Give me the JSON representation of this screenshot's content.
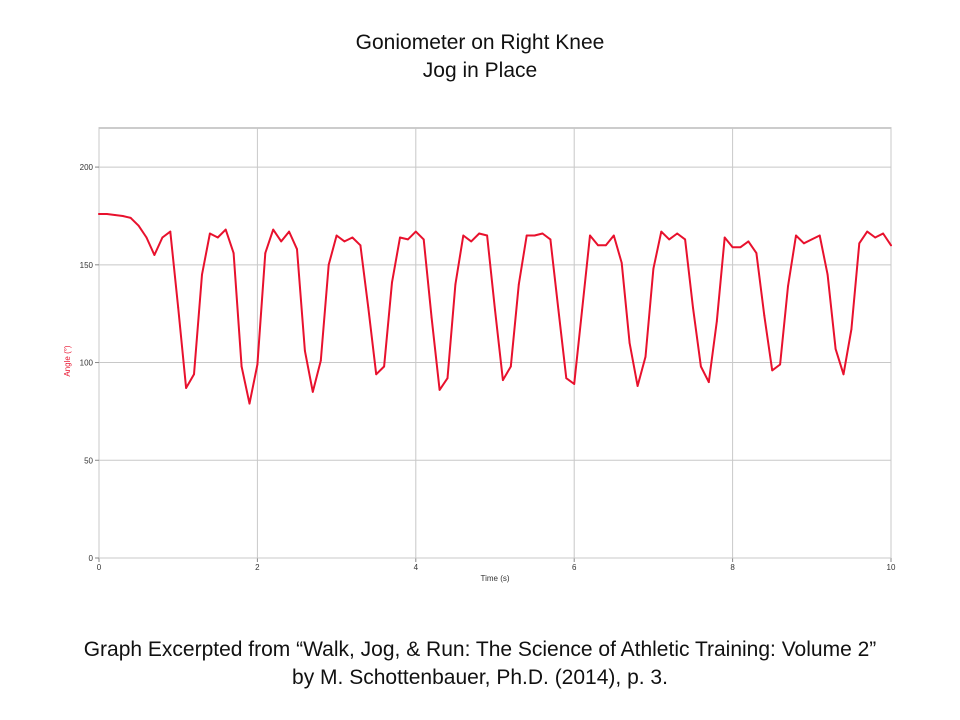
{
  "header": {
    "line1": "Goniometer on Right Knee",
    "line2": "Jog in Place"
  },
  "footer": {
    "line1": "Graph Excerpted from “Walk, Jog, & Run: The Science of Athletic Training: Volume 2”",
    "line2": "by M. Schottenbauer, Ph.D. (2014), p. 3."
  },
  "chart_data": {
    "type": "line",
    "title": "Goniometer on Right Knee",
    "subtitle": "Jog in Place",
    "xlabel": "Time (s)",
    "ylabel": "Angle (°)",
    "xlim": [
      0,
      10
    ],
    "ylim": [
      0,
      220
    ],
    "xticks": [
      0,
      2,
      4,
      6,
      8,
      10
    ],
    "yticks": [
      0,
      50,
      100,
      150,
      200
    ],
    "grid": true,
    "legend": "none",
    "colors": {
      "line": "#e8112d",
      "ylabel": "#e8112d",
      "grid": "#c8c8c8",
      "axis": "#888888"
    },
    "series": [
      {
        "x": [
          0,
          0.1,
          0.2,
          0.3,
          0.4,
          0.5,
          0.6,
          0.7,
          0.8,
          0.9,
          1.0,
          1.1,
          1.2,
          1.3,
          1.4,
          1.5,
          1.6,
          1.7,
          1.8,
          1.9,
          2.0,
          2.1,
          2.2,
          2.3,
          2.4,
          2.5,
          2.6,
          2.7,
          2.8,
          2.9,
          3.0,
          3.1,
          3.2,
          3.3,
          3.4,
          3.5,
          3.6,
          3.7,
          3.8,
          3.9,
          4.0,
          4.1,
          4.2,
          4.3,
          4.4,
          4.5,
          4.6,
          4.7,
          4.8,
          4.9,
          5.0,
          5.1,
          5.2,
          5.3,
          5.4,
          5.5,
          5.6,
          5.7,
          5.8,
          5.9,
          6.0,
          6.1,
          6.2,
          6.3,
          6.4,
          6.5,
          6.6,
          6.7,
          6.8,
          6.9,
          7.0,
          7.1,
          7.2,
          7.3,
          7.4,
          7.5,
          7.6,
          7.7,
          7.8,
          7.9,
          8.0,
          8.1,
          8.2,
          8.3,
          8.4,
          8.5,
          8.6,
          8.7,
          8.8,
          8.9,
          9.0,
          9.1,
          9.2,
          9.3,
          9.4,
          9.5,
          9.6,
          9.7,
          9.8,
          9.9,
          10.0
        ],
        "y": [
          176,
          176,
          175.5,
          175,
          174,
          170,
          164,
          155,
          164,
          167,
          128,
          87,
          94,
          145,
          166,
          164,
          168,
          156,
          98,
          79,
          99,
          156,
          168,
          162,
          167,
          158,
          106,
          85,
          101,
          150,
          165,
          162,
          164,
          160,
          128,
          94,
          98,
          141,
          164,
          163,
          167,
          163,
          123,
          86,
          92,
          140,
          165,
          162,
          166,
          165,
          127,
          91,
          98,
          140,
          165,
          165,
          166,
          163,
          127,
          92,
          89,
          127,
          165,
          160,
          160,
          165,
          151,
          110,
          88,
          103,
          148,
          167,
          163,
          166,
          163,
          128,
          98,
          90,
          121,
          164,
          159,
          159,
          162,
          156,
          124,
          96,
          99,
          139,
          165,
          161,
          163,
          165,
          145,
          107,
          94,
          117,
          161,
          167,
          164,
          166,
          160
        ]
      }
    ]
  }
}
